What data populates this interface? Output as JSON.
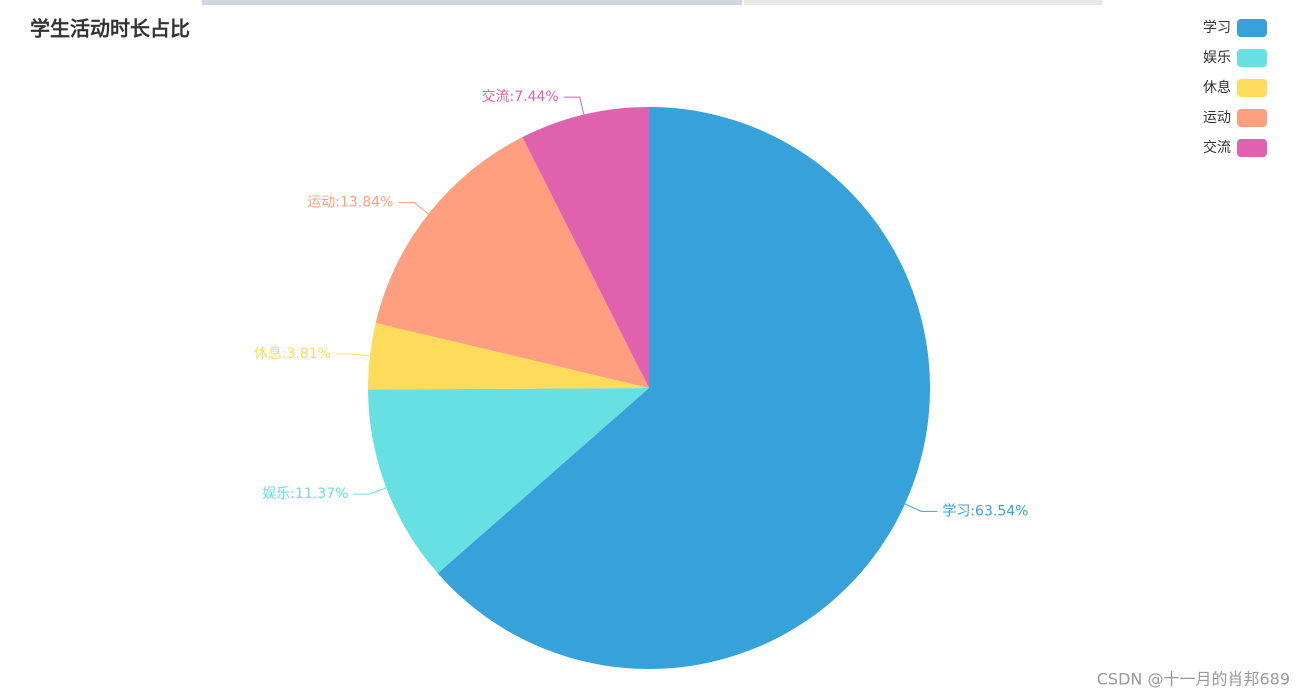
{
  "chart_data": {
    "type": "pie",
    "title": "学生活动时长占比",
    "categories": [
      "学习",
      "娱乐",
      "休息",
      "运动",
      "交流"
    ],
    "values": [
      63.54,
      11.37,
      3.81,
      13.84,
      7.44
    ],
    "value_labels": [
      "学习:63.54%",
      "娱乐:11.37%",
      "休息:3.81%",
      "运动:13.84%",
      "交流:7.44%"
    ],
    "colors": [
      "#37a2da",
      "#67e0e3",
      "#ffdb5c",
      "#ff9f7f",
      "#e062ae"
    ],
    "legend": "top-right"
  },
  "watermark": "CSDN @十一月的肖邦689"
}
